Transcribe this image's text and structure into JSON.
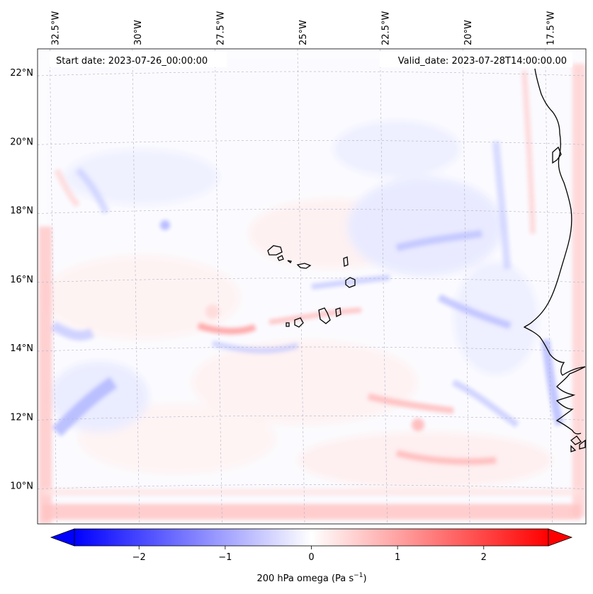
{
  "map": {
    "start_date_text": "Start date: 2023-07-26_00:00:00",
    "valid_date_text": "Valid_date: 2023-07-28T14:00:00.00",
    "lon_ticks": [
      "32.5°W",
      "30°W",
      "27.5°W",
      "25°W",
      "22.5°W",
      "20°W",
      "17.5°W"
    ],
    "lat_ticks": [
      "22°N",
      "20°N",
      "18°N",
      "16°N",
      "14°N",
      "12°N",
      "10°N"
    ],
    "lon_values": [
      -32.5,
      -30,
      -27.5,
      -25,
      -22.5,
      -20,
      -17.5
    ],
    "lat_values": [
      22,
      20,
      18,
      16,
      14,
      12,
      10
    ],
    "extent": {
      "lon": [
        -33.0,
        -16.4
      ],
      "lat": [
        8.9,
        22.7
      ]
    },
    "field": "200 hPa omega",
    "colormap": "bwr",
    "coastline_color": "#000000",
    "gridline_color": "#b0b0c8"
  },
  "colorbar": {
    "label_prefix": "200 hPa omega (Pa s",
    "label_exp": "−1",
    "label_suffix": ")",
    "range": [
      -2.75,
      2.75
    ],
    "ticks": [
      "−2",
      "−1",
      "0",
      "1",
      "2"
    ],
    "tick_values": [
      -2,
      -1,
      0,
      1,
      2
    ],
    "colors": {
      "min": "#0000ff",
      "mid": "#ffffff",
      "max": "#ff0000"
    },
    "extend": "both"
  }
}
